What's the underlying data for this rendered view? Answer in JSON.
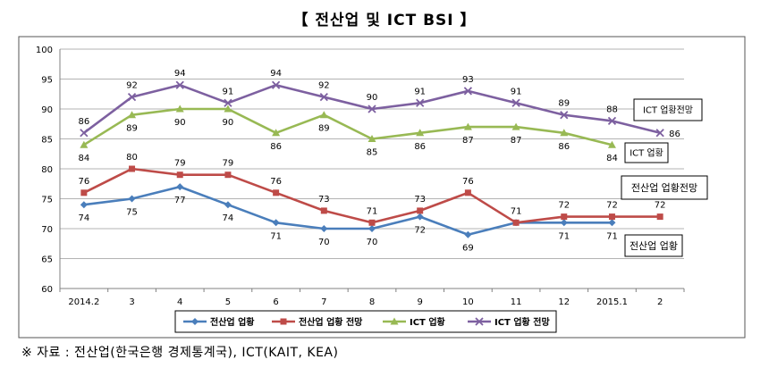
{
  "page": {
    "title": "【 전산업 및 ICT BSI 】",
    "source": "※ 자료 : 전산업(한국은행 경제통계국), ICT(KAIT, KEA)"
  },
  "chart_data": {
    "type": "line",
    "title": "【 전산업 및 ICT BSI 】",
    "categories": [
      "2014.2",
      "3",
      "4",
      "5",
      "6",
      "7",
      "8",
      "9",
      "10",
      "11",
      "12",
      "2015.1",
      "2"
    ],
    "ylim": [
      60,
      100
    ],
    "yticks": [
      60,
      65,
      70,
      75,
      80,
      85,
      90,
      95,
      100
    ],
    "grid": true,
    "legend": "bottom",
    "series": [
      {
        "name": "전산업 업황",
        "color": "#4a7ebb",
        "marker": "diamond",
        "values": [
          74,
          75,
          77,
          74,
          71,
          70,
          70,
          72,
          69,
          71,
          71,
          71,
          null
        ],
        "labels": [
          "74",
          "75",
          "77",
          "74",
          "71",
          "70",
          "70",
          "72",
          "69",
          "71",
          "71",
          "71",
          ""
        ],
        "label_pos": [
          "below",
          "below",
          "below",
          "below",
          "below",
          "below",
          "below",
          "below",
          "below",
          "above",
          "below",
          "below",
          "below"
        ]
      },
      {
        "name": "전산업 업황 전망",
        "color": "#be4b48",
        "marker": "square",
        "values": [
          76,
          80,
          79,
          79,
          76,
          73,
          71,
          73,
          76,
          71,
          72,
          72,
          72
        ],
        "labels": [
          "76",
          "80",
          "79",
          "79",
          "76",
          "73",
          "71",
          "73",
          "76",
          "",
          "72",
          "72",
          "72"
        ],
        "label_pos": [
          "above",
          "above",
          "above",
          "above",
          "above",
          "above",
          "above",
          "above",
          "above",
          "above",
          "above",
          "above",
          "above"
        ]
      },
      {
        "name": "ICT 업황",
        "color": "#98b954",
        "marker": "triangle",
        "values": [
          84,
          89,
          90,
          90,
          86,
          89,
          85,
          86,
          87,
          87,
          86,
          84,
          null
        ],
        "labels": [
          "84",
          "89",
          "90",
          "90",
          "86",
          "89",
          "85",
          "86",
          "87",
          "87",
          "86",
          "84",
          ""
        ],
        "label_pos": [
          "below",
          "below",
          "below",
          "below",
          "below",
          "below",
          "below",
          "below",
          "below",
          "below",
          "below",
          "below",
          "below"
        ]
      },
      {
        "name": "ICT 업황 전망",
        "color": "#7d60a0",
        "marker": "x",
        "values": [
          86,
          92,
          94,
          91,
          94,
          92,
          90,
          91,
          93,
          91,
          89,
          88,
          86
        ],
        "labels": [
          "86",
          "92",
          "94",
          "91",
          "94",
          "92",
          "90",
          "91",
          "93",
          "91",
          "89",
          "88",
          "86"
        ],
        "label_pos": [
          "above",
          "above",
          "above",
          "above",
          "above",
          "above",
          "above",
          "above",
          "above",
          "above",
          "above",
          "above",
          "right"
        ]
      }
    ],
    "annotations": [
      "ICT 업황전망",
      "ICT 업황",
      "전산업 업황전망",
      "전산업 업황"
    ]
  }
}
